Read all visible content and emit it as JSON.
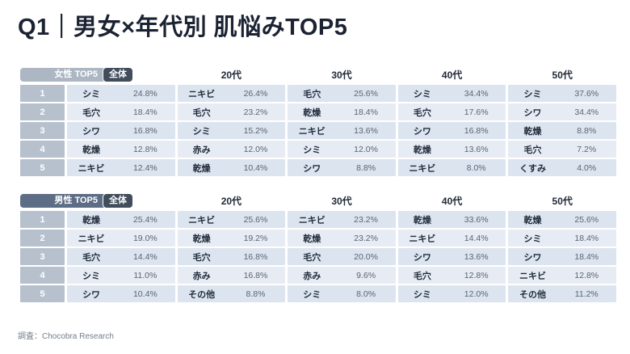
{
  "title": "Q1｜男女×年代別 肌悩みTOP5",
  "footer": {
    "source": "調査：Chocobra Research"
  },
  "colors": {
    "title_text": "#1b2232",
    "women_badge": "#acb7c3",
    "men_badge": "#5d6d85",
    "overall_badge": "#424d5c",
    "rank_cell": "#b7c1cd",
    "row_odd": "#dbe4ef",
    "row_even": "#e7ecf4",
    "concern_text": "#1f2a3a",
    "percent_text": "#5a6470"
  },
  "chart_data": [
    {
      "type": "table",
      "group_label": "女性 TOP5",
      "overall_label": "全体",
      "age_headers": [
        "20代",
        "30代",
        "40代",
        "50代"
      ],
      "columns": [
        "全体",
        "20代",
        "30代",
        "40代",
        "50代"
      ],
      "units": "%",
      "rows": [
        {
          "rank": "1",
          "cells": [
            {
              "name": "シミ",
              "value": 24.8,
              "pct": "24.8%"
            },
            {
              "name": "ニキビ",
              "value": 26.4,
              "pct": "26.4%"
            },
            {
              "name": "毛穴",
              "value": 25.6,
              "pct": "25.6%"
            },
            {
              "name": "シミ",
              "value": 34.4,
              "pct": "34.4%"
            },
            {
              "name": "シミ",
              "value": 37.6,
              "pct": "37.6%"
            }
          ]
        },
        {
          "rank": "2",
          "cells": [
            {
              "name": "毛穴",
              "value": 18.4,
              "pct": "18.4%"
            },
            {
              "name": "毛穴",
              "value": 23.2,
              "pct": "23.2%"
            },
            {
              "name": "乾燥",
              "value": 18.4,
              "pct": "18.4%"
            },
            {
              "name": "毛穴",
              "value": 17.6,
              "pct": "17.6%"
            },
            {
              "name": "シワ",
              "value": 34.4,
              "pct": "34.4%"
            }
          ]
        },
        {
          "rank": "3",
          "cells": [
            {
              "name": "シワ",
              "value": 16.8,
              "pct": "16.8%"
            },
            {
              "name": "シミ",
              "value": 15.2,
              "pct": "15.2%"
            },
            {
              "name": "ニキビ",
              "value": 13.6,
              "pct": "13.6%"
            },
            {
              "name": "シワ",
              "value": 16.8,
              "pct": "16.8%"
            },
            {
              "name": "乾燥",
              "value": 8.8,
              "pct": "8.8%"
            }
          ]
        },
        {
          "rank": "4",
          "cells": [
            {
              "name": "乾燥",
              "value": 12.8,
              "pct": "12.8%"
            },
            {
              "name": "赤み",
              "value": 12.0,
              "pct": "12.0%"
            },
            {
              "name": "シミ",
              "value": 12.0,
              "pct": "12.0%"
            },
            {
              "name": "乾燥",
              "value": 13.6,
              "pct": "13.6%"
            },
            {
              "name": "毛穴",
              "value": 7.2,
              "pct": "7.2%"
            }
          ]
        },
        {
          "rank": "5",
          "cells": [
            {
              "name": "ニキビ",
              "value": 12.4,
              "pct": "12.4%"
            },
            {
              "name": "乾燥",
              "value": 10.4,
              "pct": "10.4%"
            },
            {
              "name": "シワ",
              "value": 8.8,
              "pct": "8.8%"
            },
            {
              "name": "ニキビ",
              "value": 8.0,
              "pct": "8.0%"
            },
            {
              "name": "くすみ",
              "value": 4.0,
              "pct": "4.0%"
            }
          ]
        }
      ]
    },
    {
      "type": "table",
      "group_label": "男性 TOP5",
      "overall_label": "全体",
      "age_headers": [
        "20代",
        "30代",
        "40代",
        "50代"
      ],
      "columns": [
        "全体",
        "20代",
        "30代",
        "40代",
        "50代"
      ],
      "units": "%",
      "rows": [
        {
          "rank": "1",
          "cells": [
            {
              "name": "乾燥",
              "value": 25.4,
              "pct": "25.4%"
            },
            {
              "name": "ニキビ",
              "value": 25.6,
              "pct": "25.6%"
            },
            {
              "name": "ニキビ",
              "value": 23.2,
              "pct": "23.2%"
            },
            {
              "name": "乾燥",
              "value": 33.6,
              "pct": "33.6%"
            },
            {
              "name": "乾燥",
              "value": 25.6,
              "pct": "25.6%"
            }
          ]
        },
        {
          "rank": "2",
          "cells": [
            {
              "name": "ニキビ",
              "value": 19.0,
              "pct": "19.0%"
            },
            {
              "name": "乾燥",
              "value": 19.2,
              "pct": "19.2%"
            },
            {
              "name": "乾燥",
              "value": 23.2,
              "pct": "23.2%"
            },
            {
              "name": "ニキビ",
              "value": 14.4,
              "pct": "14.4%"
            },
            {
              "name": "シミ",
              "value": 18.4,
              "pct": "18.4%"
            }
          ]
        },
        {
          "rank": "3",
          "cells": [
            {
              "name": "毛穴",
              "value": 14.4,
              "pct": "14.4%"
            },
            {
              "name": "毛穴",
              "value": 16.8,
              "pct": "16.8%"
            },
            {
              "name": "毛穴",
              "value": 20.0,
              "pct": "20.0%"
            },
            {
              "name": "シワ",
              "value": 13.6,
              "pct": "13.6%"
            },
            {
              "name": "シワ",
              "value": 18.4,
              "pct": "18.4%"
            }
          ]
        },
        {
          "rank": "4",
          "cells": [
            {
              "name": "シミ",
              "value": 11.0,
              "pct": "11.0%"
            },
            {
              "name": "赤み",
              "value": 16.8,
              "pct": "16.8%"
            },
            {
              "name": "赤み",
              "value": 9.6,
              "pct": "9.6%"
            },
            {
              "name": "毛穴",
              "value": 12.8,
              "pct": "12.8%"
            },
            {
              "name": "ニキビ",
              "value": 12.8,
              "pct": "12.8%"
            }
          ]
        },
        {
          "rank": "5",
          "cells": [
            {
              "name": "シワ",
              "value": 10.4,
              "pct": "10.4%"
            },
            {
              "name": "その他",
              "value": 8.8,
              "pct": "8.8%"
            },
            {
              "name": "シミ",
              "value": 8.0,
              "pct": "8.0%"
            },
            {
              "name": "シミ",
              "value": 12.0,
              "pct": "12.0%"
            },
            {
              "name": "その他",
              "value": 11.2,
              "pct": "11.2%"
            }
          ]
        }
      ]
    }
  ]
}
